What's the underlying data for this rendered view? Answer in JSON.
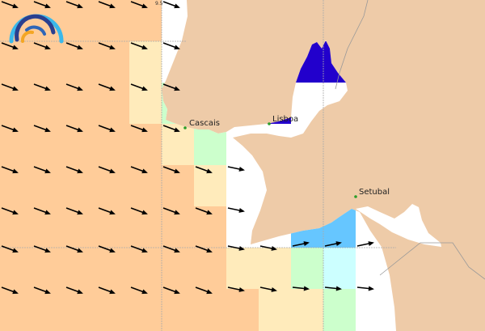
{
  "map": {
    "top_label": "9.5",
    "places": [
      {
        "name": "Cascais"
      },
      {
        "name": "Lisboa"
      },
      {
        "name": "Setubal"
      }
    ],
    "colors": {
      "land": "#EECBA8",
      "sea": "#FFFFFF",
      "class_orange": "#FFCC99",
      "class_cream": "#FFEBBB",
      "class_green": "#CCFFCC",
      "class_cyan": "#CCFFFF",
      "class_blue": "#66C6FF",
      "class_darkblue": "#2200CC",
      "place_dot": "#2a9d2a",
      "arrow": "#000000"
    },
    "logo": "wave-arcs-logo"
  }
}
